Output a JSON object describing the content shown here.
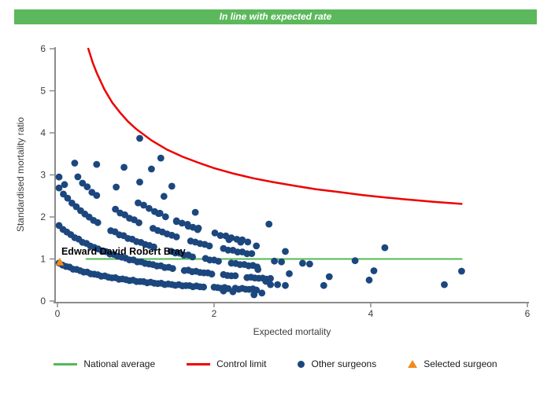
{
  "banner": {
    "text": "In line with expected rate",
    "bg_color": "#5CB85C",
    "text_color": "#FFFFFF"
  },
  "legend": {
    "items": [
      {
        "label": "National average",
        "swatch": "line",
        "color": "#55B855"
      },
      {
        "label": "Control limit",
        "swatch": "line",
        "color": "#ED0000"
      },
      {
        "label": "Other surgeons",
        "swatch": "dot",
        "color": "#1C477E"
      },
      {
        "label": "Selected surgeon",
        "swatch": "triangle",
        "color": "#F08C1E"
      }
    ]
  },
  "chart_data": {
    "type": "scatter",
    "title": "",
    "xlabel": "Expected mortality",
    "ylabel": "Standardised mortality ratio",
    "xlim": [
      0,
      6
    ],
    "ylim": [
      0,
      6
    ],
    "x_ticks": [
      0,
      2,
      4,
      6
    ],
    "y_ticks": [
      0,
      1,
      2,
      3,
      4,
      5,
      6
    ],
    "grid": false,
    "legend_position": "bottom",
    "colors": {
      "axis": "#8C8C8C",
      "tick_text": "#3D3D3D",
      "label_text": "#000000"
    },
    "national_average": {
      "y": 1.0,
      "x_from": 0.36,
      "x_to": 5.17,
      "color": "#55B855"
    },
    "control_limit": {
      "color": "#ED0000",
      "formula": "smr = 0.9 + 3.2 / sqrt(expected)",
      "points": [
        [
          0.394,
          6.0
        ],
        [
          0.45,
          5.67
        ],
        [
          0.5,
          5.43
        ],
        [
          0.6,
          5.03
        ],
        [
          0.7,
          4.72
        ],
        [
          0.8,
          4.48
        ],
        [
          0.9,
          4.27
        ],
        [
          1.0,
          4.1
        ],
        [
          1.2,
          3.82
        ],
        [
          1.4,
          3.6
        ],
        [
          1.6,
          3.43
        ],
        [
          1.8,
          3.29
        ],
        [
          2.0,
          3.16
        ],
        [
          2.25,
          3.03
        ],
        [
          2.5,
          2.92
        ],
        [
          2.75,
          2.83
        ],
        [
          3.0,
          2.75
        ],
        [
          3.3,
          2.66
        ],
        [
          3.6,
          2.59
        ],
        [
          3.9,
          2.52
        ],
        [
          4.2,
          2.46
        ],
        [
          4.5,
          2.41
        ],
        [
          4.8,
          2.36
        ],
        [
          5.16,
          2.31
        ]
      ]
    },
    "other_surgeons": {
      "color": "#1C477E",
      "marker_radius": 4.4,
      "arc_formula": "smr = deaths / (expected + 1.1)",
      "arcs": [
        {
          "deaths": 1,
          "offset": 1.1,
          "x_from": 0.02,
          "x_to": 2.58,
          "step": 0.045,
          "gaps": [
            [
              1.88,
              1.98
            ],
            [
              2.18,
              2.26
            ]
          ]
        },
        {
          "deaths": 2,
          "offset": 1.1,
          "x_from": 0.02,
          "x_to": 2.72,
          "step": 0.05,
          "gaps": [
            [
              1.52,
              1.62
            ],
            [
              1.98,
              2.08
            ],
            [
              2.32,
              2.42
            ]
          ]
        },
        {
          "deaths": 3,
          "offset": 1.1,
          "x_from": 0.02,
          "x_to": 2.55,
          "step": 0.055,
          "gaps": [
            [
              0.55,
              0.65
            ],
            [
              1.28,
              1.4
            ],
            [
              1.74,
              1.86
            ],
            [
              2.08,
              2.2
            ]
          ]
        },
        {
          "deaths": 4,
          "offset": 1.1,
          "x_from": 0.26,
          "x_to": 2.48,
          "step": 0.06,
          "gaps": [
            [
              0.5,
              0.72
            ],
            [
              1.08,
              1.2
            ],
            [
              1.58,
              1.7
            ],
            [
              1.98,
              2.1
            ]
          ]
        },
        {
          "deaths": 5,
          "offset": 1.1,
          "x_from": 0.75,
          "x_to": 2.48,
          "step": 0.07,
          "gaps": [
            [
              0.82,
              1.0
            ],
            [
              1.4,
              1.52
            ],
            [
              1.86,
              1.96
            ]
          ]
        }
      ],
      "points": [
        [
          0.02,
          2.95
        ],
        [
          0.09,
          2.77
        ],
        [
          0.22,
          3.28
        ],
        [
          0.5,
          3.25
        ],
        [
          0.85,
          3.18
        ],
        [
          1.2,
          3.14
        ],
        [
          1.32,
          3.4
        ],
        [
          1.05,
          3.87
        ],
        [
          1.05,
          2.83
        ],
        [
          1.46,
          2.73
        ],
        [
          1.36,
          2.49
        ],
        [
          1.29,
          2.08
        ],
        [
          1.76,
          2.11
        ],
        [
          2.7,
          1.83
        ],
        [
          1.52,
          1.89
        ],
        [
          1.67,
          1.78
        ],
        [
          1.79,
          1.7
        ],
        [
          2.19,
          1.46
        ],
        [
          2.34,
          1.4
        ],
        [
          2.54,
          1.31
        ],
        [
          2.91,
          1.18
        ],
        [
          2.77,
          0.95
        ],
        [
          2.86,
          0.93
        ],
        [
          3.13,
          0.9
        ],
        [
          3.22,
          0.88
        ],
        [
          3.8,
          0.96
        ],
        [
          4.18,
          1.27
        ],
        [
          4.04,
          0.72
        ],
        [
          3.98,
          0.5
        ],
        [
          2.56,
          0.75
        ],
        [
          2.96,
          0.65
        ],
        [
          3.47,
          0.58
        ],
        [
          2.72,
          0.39
        ],
        [
          2.81,
          0.39
        ],
        [
          2.91,
          0.37
        ],
        [
          3.4,
          0.37
        ],
        [
          2.51,
          0.15
        ],
        [
          2.61,
          0.19
        ],
        [
          2.12,
          0.24
        ],
        [
          2.24,
          0.22
        ],
        [
          2.66,
          0.47
        ],
        [
          4.94,
          0.39
        ],
        [
          5.16,
          0.71
        ]
      ]
    },
    "selected_surgeon": {
      "name": "Edward David Robert Bray",
      "x": 0.03,
      "y": 0.93,
      "color": "#F08C1E",
      "label_x": 0.05,
      "label_y": 1.1
    }
  }
}
